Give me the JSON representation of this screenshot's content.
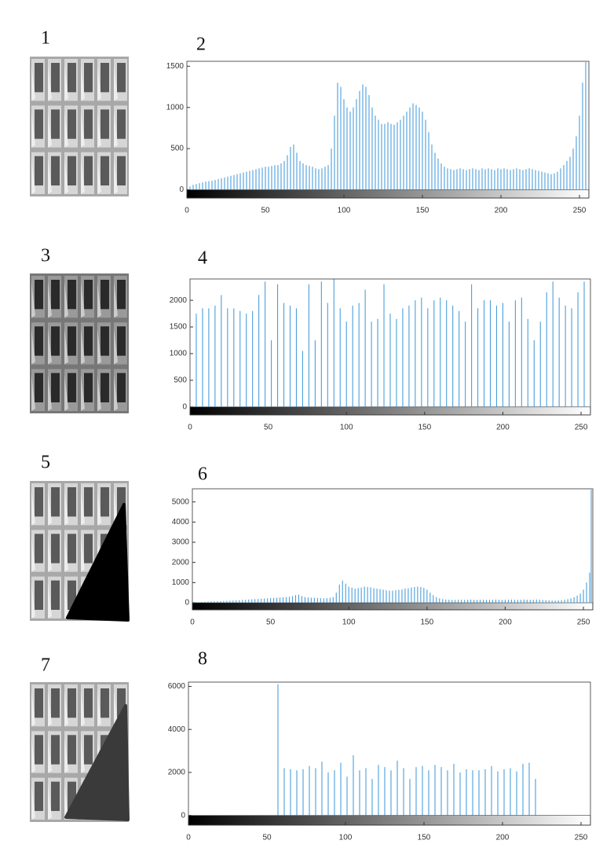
{
  "images": [
    {
      "label": "1"
    },
    {
      "label": "3"
    },
    {
      "label": "5"
    },
    {
      "label": "7"
    }
  ],
  "chart_data": [
    {
      "type": "histogram",
      "title": "2",
      "color": "#4a9fdc",
      "x": [
        0,
        2,
        4,
        6,
        8,
        10,
        12,
        14,
        16,
        18,
        20,
        22,
        24,
        26,
        28,
        30,
        32,
        34,
        36,
        38,
        40,
        42,
        44,
        46,
        48,
        50,
        52,
        54,
        56,
        58,
        60,
        62,
        64,
        66,
        68,
        70,
        72,
        74,
        76,
        78,
        80,
        82,
        84,
        86,
        88,
        90,
        92,
        94,
        96,
        98,
        100,
        102,
        104,
        106,
        108,
        110,
        112,
        114,
        116,
        118,
        120,
        122,
        124,
        126,
        128,
        130,
        132,
        134,
        136,
        138,
        140,
        142,
        144,
        146,
        148,
        150,
        152,
        154,
        156,
        158,
        160,
        162,
        164,
        166,
        168,
        170,
        172,
        174,
        176,
        178,
        180,
        182,
        184,
        186,
        188,
        190,
        192,
        194,
        196,
        198,
        200,
        202,
        204,
        206,
        208,
        210,
        212,
        214,
        216,
        218,
        220,
        222,
        224,
        226,
        228,
        230,
        232,
        234,
        236,
        238,
        240,
        242,
        244,
        246,
        248,
        250,
        252,
        254
      ],
      "values": [
        20,
        40,
        60,
        70,
        80,
        90,
        100,
        105,
        110,
        120,
        130,
        140,
        150,
        160,
        170,
        180,
        190,
        200,
        210,
        220,
        230,
        240,
        250,
        260,
        270,
        280,
        280,
        290,
        300,
        300,
        320,
        350,
        420,
        520,
        550,
        450,
        350,
        320,
        300,
        290,
        280,
        260,
        250,
        260,
        280,
        300,
        500,
        900,
        1300,
        1250,
        1100,
        1000,
        950,
        1000,
        1100,
        1200,
        1280,
        1250,
        1150,
        1000,
        900,
        850,
        800,
        800,
        820,
        800,
        790,
        820,
        850,
        900,
        950,
        1000,
        1050,
        1030,
        1000,
        950,
        850,
        700,
        550,
        450,
        380,
        320,
        280,
        260,
        250,
        240,
        250,
        260,
        250,
        240,
        250,
        260,
        250,
        240,
        260,
        250,
        260,
        250,
        240,
        260,
        250,
        260,
        250,
        240,
        250,
        260,
        250,
        240,
        250,
        260,
        250,
        240,
        230,
        220,
        210,
        200,
        190,
        200,
        220,
        260,
        300,
        350,
        400,
        500,
        650,
        900,
        1300,
        1550
      ],
      "xlim": [
        0,
        256
      ],
      "ylim": [
        -100,
        1560
      ],
      "xticks": [
        0,
        50,
        100,
        150,
        200,
        250
      ],
      "yticks": [
        0,
        500,
        1000,
        1500
      ]
    },
    {
      "type": "histogram",
      "title": "4",
      "color": "#4a9fdc",
      "x": [
        4,
        8,
        12,
        16,
        20,
        24,
        28,
        32,
        36,
        40,
        44,
        48,
        52,
        56,
        60,
        64,
        68,
        72,
        76,
        80,
        84,
        88,
        92,
        96,
        100,
        104,
        108,
        112,
        116,
        120,
        124,
        128,
        132,
        136,
        140,
        144,
        148,
        152,
        156,
        160,
        164,
        168,
        172,
        176,
        180,
        184,
        188,
        192,
        196,
        200,
        204,
        208,
        212,
        216,
        220,
        224,
        228,
        232,
        236,
        240,
        244,
        248,
        252
      ],
      "values": [
        1750,
        1850,
        1850,
        1900,
        2100,
        1850,
        1850,
        1800,
        1750,
        1800,
        2100,
        2350,
        1250,
        2300,
        1950,
        1900,
        1850,
        1050,
        2300,
        1250,
        2350,
        1950,
        2400,
        1850,
        1600,
        1900,
        1950,
        2200,
        1600,
        1650,
        2300,
        1750,
        1650,
        1850,
        1900,
        2000,
        2050,
        1850,
        2000,
        2050,
        2000,
        1900,
        1800,
        1600,
        2300,
        1850,
        2000,
        2000,
        1900,
        1950,
        1600,
        2000,
        2050,
        1650,
        1250,
        1600,
        2150,
        2350,
        2050,
        1900,
        1850,
        2150,
        2350
      ],
      "xlim": [
        0,
        256
      ],
      "ylim": [
        -150,
        2400
      ],
      "xticks": [
        0,
        50,
        100,
        150,
        200,
        250
      ],
      "yticks": [
        0,
        500,
        1000,
        1500,
        2000
      ]
    },
    {
      "type": "histogram",
      "title": "6",
      "color": "#4a9fdc",
      "x": [
        0,
        2,
        4,
        6,
        8,
        10,
        12,
        14,
        16,
        18,
        20,
        22,
        24,
        26,
        28,
        30,
        32,
        34,
        36,
        38,
        40,
        42,
        44,
        46,
        48,
        50,
        52,
        54,
        56,
        58,
        60,
        62,
        64,
        66,
        68,
        70,
        72,
        74,
        76,
        78,
        80,
        82,
        84,
        86,
        88,
        90,
        92,
        94,
        96,
        98,
        100,
        102,
        104,
        106,
        108,
        110,
        112,
        114,
        116,
        118,
        120,
        122,
        124,
        126,
        128,
        130,
        132,
        134,
        136,
        138,
        140,
        142,
        144,
        146,
        148,
        150,
        152,
        154,
        156,
        158,
        160,
        162,
        164,
        166,
        168,
        170,
        172,
        174,
        176,
        178,
        180,
        182,
        184,
        186,
        188,
        190,
        192,
        194,
        196,
        198,
        200,
        202,
        204,
        206,
        208,
        210,
        212,
        214,
        216,
        218,
        220,
        222,
        224,
        226,
        228,
        230,
        232,
        234,
        236,
        238,
        240,
        242,
        244,
        246,
        248,
        250,
        252,
        254,
        255
      ],
      "values": [
        10,
        20,
        30,
        40,
        50,
        60,
        70,
        75,
        80,
        85,
        90,
        95,
        100,
        110,
        120,
        130,
        140,
        150,
        160,
        170,
        180,
        190,
        200,
        210,
        220,
        230,
        240,
        250,
        260,
        270,
        280,
        300,
        330,
        380,
        400,
        330,
        280,
        260,
        250,
        250,
        240,
        230,
        220,
        230,
        250,
        280,
        500,
        900,
        1100,
        950,
        800,
        750,
        700,
        720,
        750,
        800,
        780,
        760,
        720,
        700,
        680,
        650,
        620,
        600,
        600,
        620,
        640,
        660,
        700,
        720,
        760,
        780,
        800,
        780,
        740,
        650,
        500,
        380,
        280,
        220,
        180,
        160,
        150,
        140,
        140,
        150,
        150,
        140,
        150,
        160,
        150,
        140,
        150,
        150,
        140,
        150,
        150,
        160,
        150,
        140,
        150,
        150,
        160,
        150,
        140,
        150,
        160,
        150,
        140,
        150,
        160,
        150,
        140,
        130,
        120,
        110,
        110,
        120,
        130,
        150,
        180,
        220,
        280,
        350,
        450,
        650,
        1000,
        1500,
        5600
      ],
      "xlim": [
        0,
        256
      ],
      "ylim": [
        -350,
        5650
      ],
      "xticks": [
        0,
        50,
        100,
        150,
        200,
        250
      ],
      "yticks": [
        0,
        1000,
        2000,
        3000,
        4000,
        5000
      ]
    },
    {
      "type": "histogram",
      "title": "8",
      "color": "#4a9fdc",
      "x": [
        57,
        61,
        65,
        69,
        73,
        77,
        81,
        85,
        89,
        93,
        97,
        101,
        105,
        109,
        113,
        117,
        121,
        125,
        129,
        133,
        137,
        141,
        145,
        149,
        153,
        157,
        161,
        165,
        169,
        173,
        177,
        181,
        185,
        189,
        193,
        197,
        201,
        205,
        209,
        213,
        217,
        221
      ],
      "values": [
        6100,
        2200,
        2150,
        2100,
        2150,
        2300,
        2200,
        2500,
        2000,
        2100,
        2450,
        1800,
        2800,
        2100,
        2200,
        1700,
        2350,
        2250,
        2100,
        2550,
        2200,
        1700,
        2250,
        2300,
        2100,
        2350,
        2250,
        2100,
        2400,
        2000,
        2150,
        2100,
        2100,
        2150,
        2300,
        2050,
        2150,
        2200,
        2050,
        2400,
        2450,
        1700
      ],
      "xlim": [
        0,
        256
      ],
      "ylim": [
        -450,
        6200
      ],
      "xticks": [
        0,
        50,
        100,
        150,
        200,
        250
      ],
      "yticks": [
        0,
        2000,
        4000,
        6000
      ]
    }
  ]
}
